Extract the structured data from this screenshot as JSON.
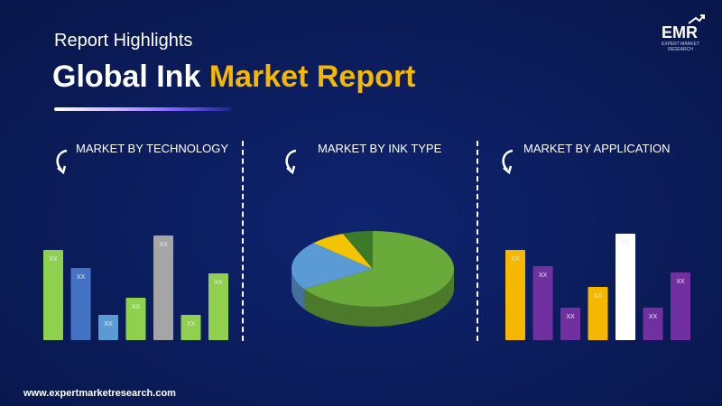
{
  "header": {
    "subtitle": "Report Highlights",
    "title_main": "Global Ink",
    "title_accent": "Market Report"
  },
  "logo": {
    "text": "EMR",
    "tagline": "EXPERT MARKET RESEARCH"
  },
  "sections": {
    "technology": {
      "title": "MARKET BY TECHNOLOGY",
      "icon": "curved-arrow-icon"
    },
    "ink_type": {
      "title": "MARKET BY INK TYPE",
      "icon": "curved-arrow-icon"
    },
    "application": {
      "title": "MARKET BY APPLICATION",
      "icon": "curved-arrow-icon"
    }
  },
  "footer": {
    "url": "www.expertmarketresearch.com"
  },
  "chart_data": [
    {
      "type": "bar",
      "values": [
        100,
        80,
        28,
        47,
        116,
        28,
        74
      ],
      "data_labels": [
        "XX",
        "XX",
        "XX",
        "XX",
        "XX",
        "XX",
        "XX"
      ],
      "colors": [
        "#8fd14f",
        "#4472c4",
        "#5b9bd5",
        "#8fd14f",
        "#a5a5a5",
        "#8fd14f",
        "#8fd14f"
      ],
      "ylim": [
        0,
        130
      ]
    },
    {
      "type": "pie",
      "values": [
        66,
        21,
        7,
        6
      ],
      "colors": [
        "#6aaa3a",
        "#5b9bd5",
        "#f5c400",
        "#3c7a2a"
      ]
    },
    {
      "type": "bar",
      "values": [
        100,
        82,
        36,
        59,
        118,
        36,
        75
      ],
      "data_labels": [
        "XX",
        "XX",
        "XX",
        "XX",
        "XX",
        "XX",
        "XX"
      ],
      "colors": [
        "#f5b700",
        "#7030a0",
        "#7030a0",
        "#f5b700",
        "#ffffff",
        "#7030a0",
        "#7030a0"
      ],
      "ylim": [
        0,
        130
      ]
    }
  ]
}
